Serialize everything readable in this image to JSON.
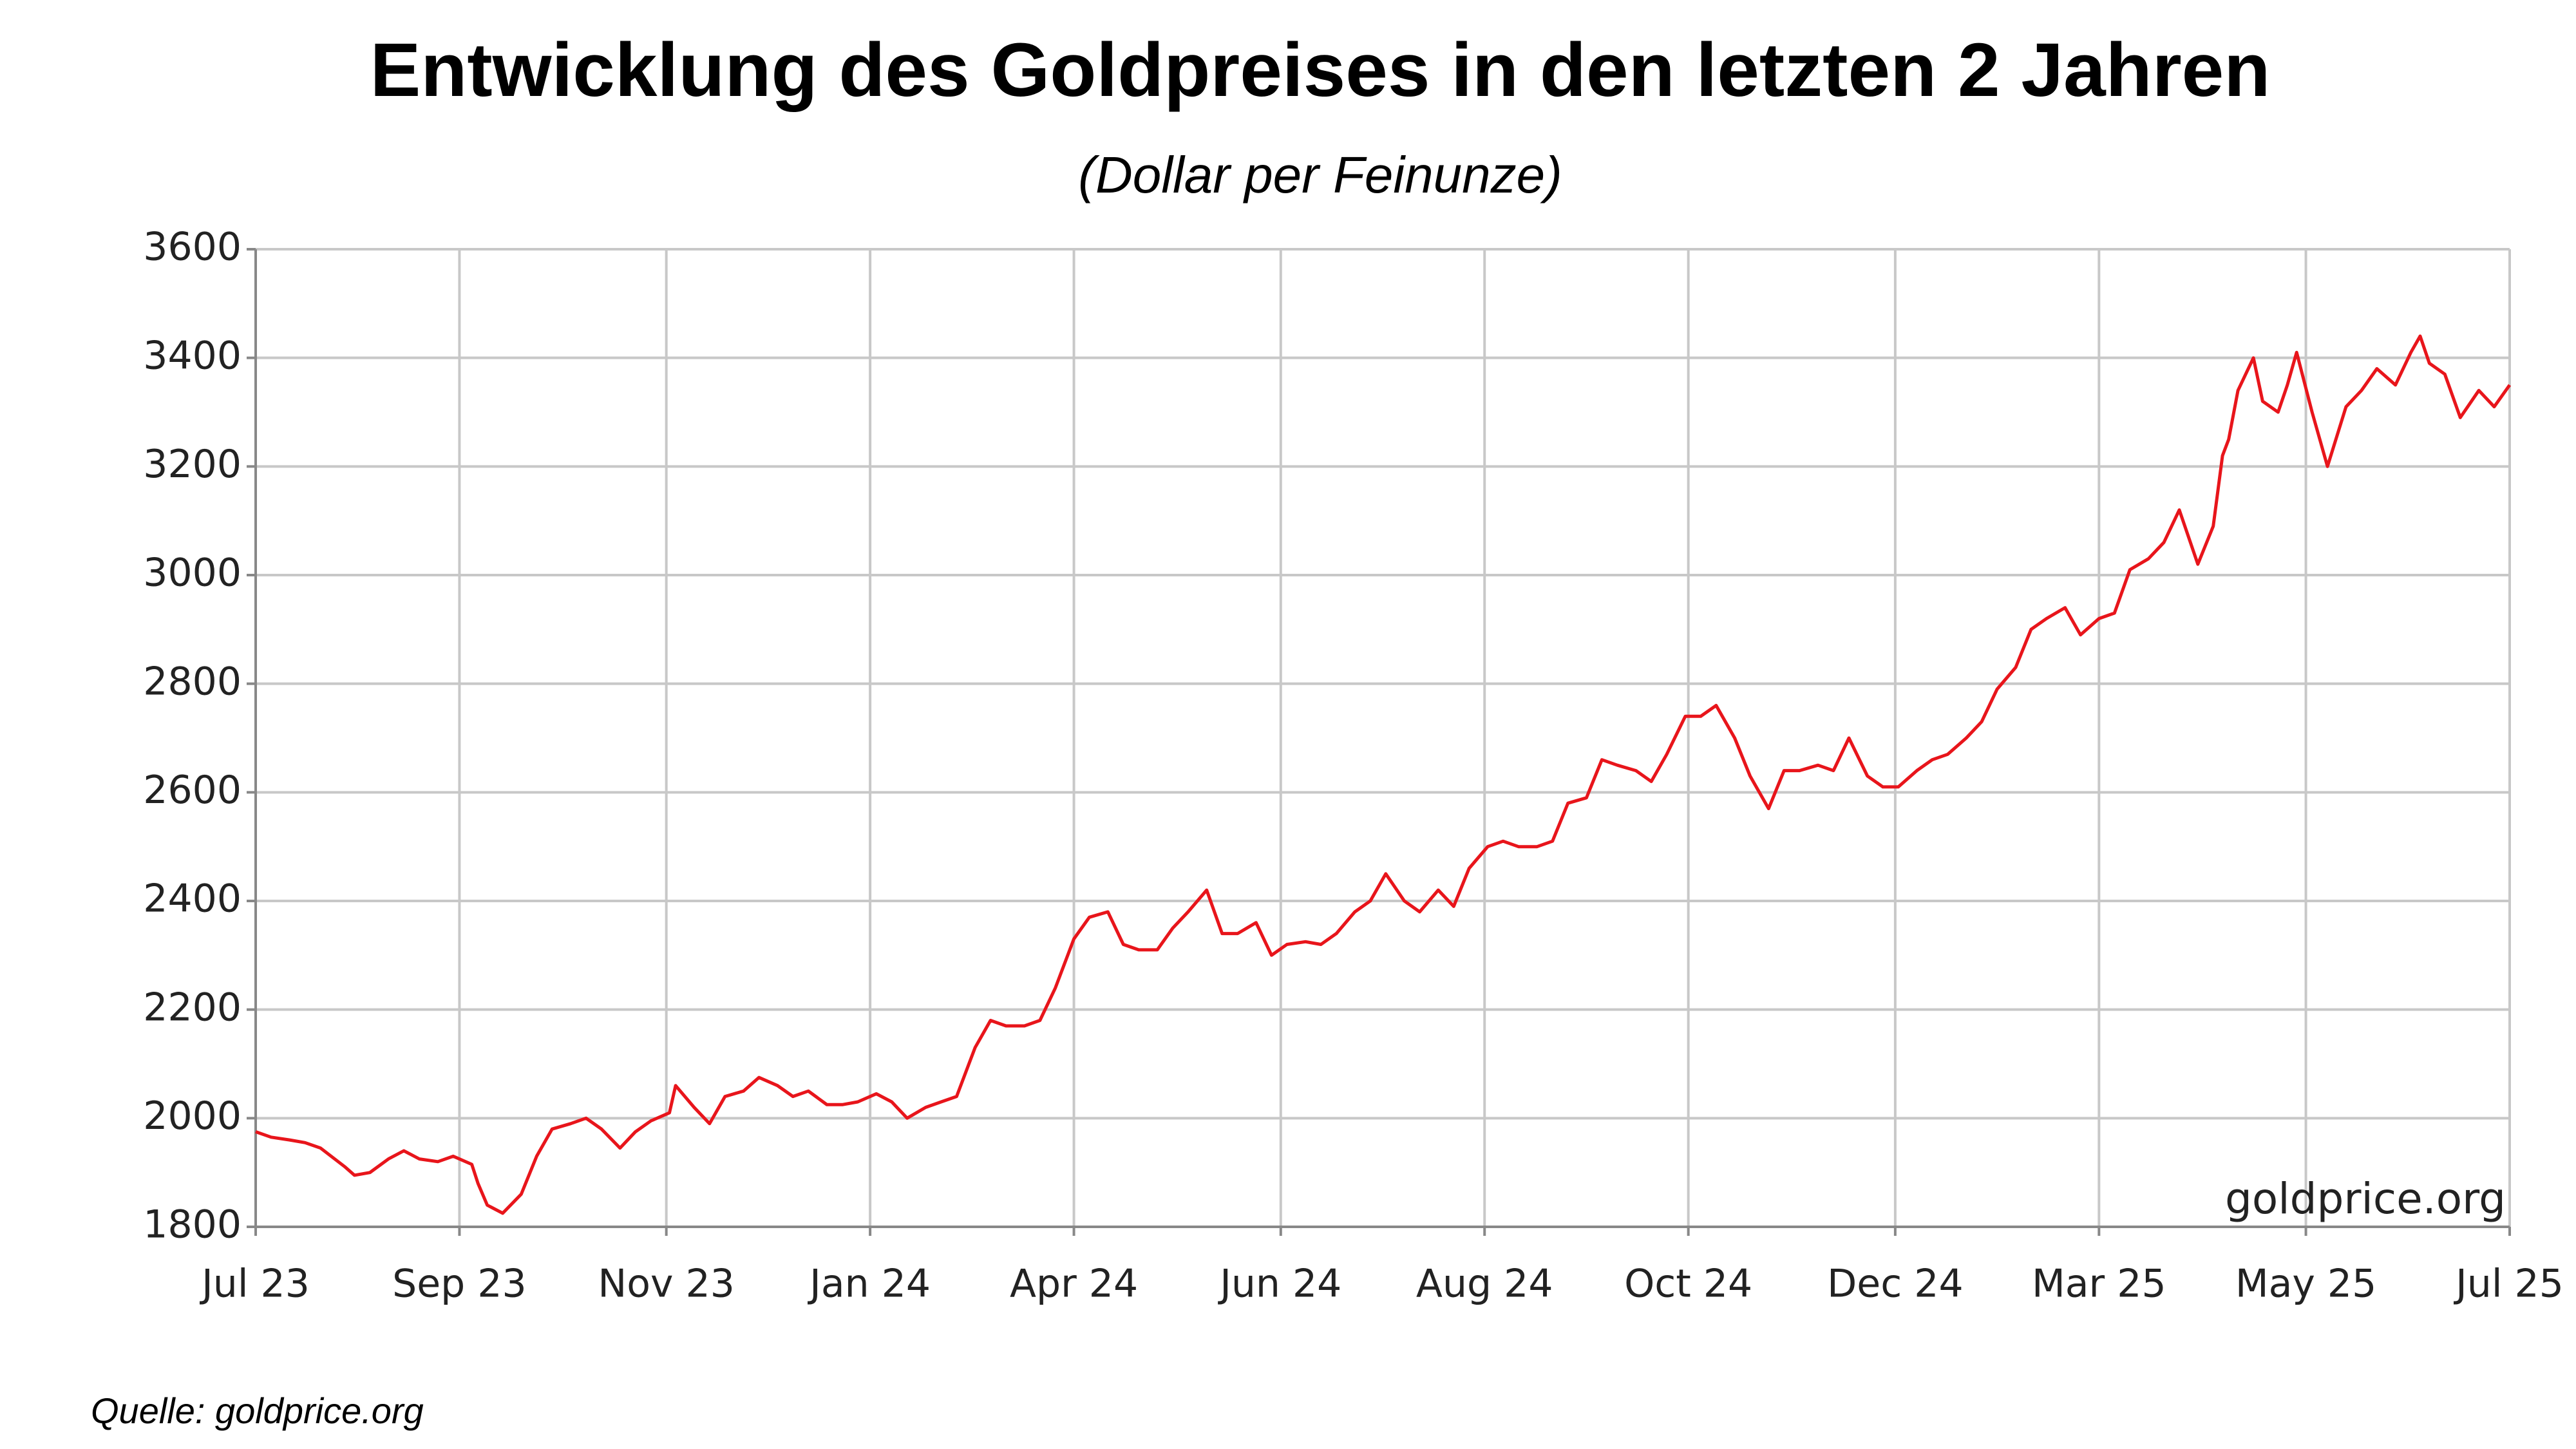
{
  "chart_data": {
    "type": "line",
    "title": "Entwicklung des Goldpreises in den letzten 2 Jahren",
    "subtitle": "(Dollar per Feinunze)",
    "watermark": "goldprice.org",
    "source": "Quelle: goldprice.org",
    "color": "#e8151b",
    "grid": true,
    "xlim": [
      0,
      730
    ],
    "xticks": [
      {
        "value": 0,
        "label": "Jul 23"
      },
      {
        "value": 66,
        "label": "Sep 23"
      },
      {
        "value": 133,
        "label": "Nov 23"
      },
      {
        "value": 199,
        "label": "Jan 24"
      },
      {
        "value": 265,
        "label": "Apr 24"
      },
      {
        "value": 332,
        "label": "Jun 24"
      },
      {
        "value": 398,
        "label": "Aug 24"
      },
      {
        "value": 464,
        "label": "Oct 24"
      },
      {
        "value": 531,
        "label": "Dec 24"
      },
      {
        "value": 597,
        "label": "Mar 25"
      },
      {
        "value": 664,
        "label": "May 25"
      },
      {
        "value": 730,
        "label": "Jul 25"
      }
    ],
    "ylim": [
      1800,
      3600
    ],
    "yticks": [
      1800,
      2000,
      2200,
      2400,
      2600,
      2800,
      3000,
      3200,
      3400,
      3600
    ],
    "x": [
      0,
      5,
      11,
      16,
      21,
      29,
      32,
      37,
      43,
      48,
      53,
      59,
      64,
      70,
      72,
      75,
      80,
      86,
      91,
      96,
      102,
      107,
      112,
      118,
      123,
      128,
      134,
      136,
      142,
      147,
      152,
      158,
      163,
      169,
      174,
      179,
      185,
      190,
      195,
      201,
      206,
      211,
      217,
      222,
      227,
      233,
      238,
      243,
      249,
      254,
      259,
      265,
      270,
      276,
      281,
      286,
      292,
      297,
      302,
      308,
      313,
      318,
      324,
      329,
      334,
      340,
      345,
      350,
      356,
      361,
      366,
      372,
      377,
      383,
      388,
      393,
      399,
      404,
      409,
      415,
      420,
      425,
      431,
      436,
      441,
      447,
      452,
      457,
      463,
      468,
      473,
      479,
      484,
      490,
      495,
      500,
      506,
      511,
      516,
      522,
      527,
      532,
      538,
      543,
      548,
      554,
      559,
      564,
      570,
      575,
      580,
      586,
      591,
      597,
      602,
      607,
      613,
      618,
      623,
      629,
      634,
      637,
      639,
      642,
      647,
      650,
      655,
      658,
      661,
      666,
      671,
      677,
      682,
      687,
      693,
      698,
      701,
      704,
      709,
      714,
      720,
      725,
      730
    ],
    "values": [
      1975,
      1965,
      1960,
      1955,
      1945,
      1910,
      1895,
      1900,
      1925,
      1940,
      1925,
      1920,
      1930,
      1915,
      1880,
      1840,
      1825,
      1860,
      1930,
      1980,
      1990,
      2000,
      1980,
      1945,
      1975,
      1995,
      2010,
      2060,
      2020,
      1990,
      2040,
      2050,
      2075,
      2060,
      2040,
      2050,
      2025,
      2025,
      2030,
      2045,
      2030,
      2000,
      2020,
      2030,
      2040,
      2130,
      2180,
      2170,
      2170,
      2180,
      2240,
      2330,
      2370,
      2380,
      2320,
      2310,
      2310,
      2350,
      2380,
      2420,
      2340,
      2340,
      2360,
      2300,
      2320,
      2325,
      2320,
      2340,
      2380,
      2400,
      2450,
      2400,
      2380,
      2420,
      2390,
      2460,
      2500,
      2510,
      2500,
      2500,
      2510,
      2580,
      2590,
      2660,
      2650,
      2640,
      2620,
      2670,
      2740,
      2740,
      2760,
      2700,
      2630,
      2570,
      2640,
      2640,
      2650,
      2640,
      2700,
      2630,
      2610,
      2610,
      2640,
      2660,
      2670,
      2700,
      2730,
      2790,
      2830,
      2900,
      2920,
      2940,
      2890,
      2920,
      2930,
      3010,
      3030,
      3060,
      3120,
      3020,
      3090,
      3220,
      3250,
      3340,
      3400,
      3320,
      3300,
      3350,
      3410,
      3300,
      3200,
      3310,
      3340,
      3380,
      3350,
      3410,
      3440,
      3390,
      3370,
      3290,
      3340,
      3310,
      3350
    ]
  }
}
